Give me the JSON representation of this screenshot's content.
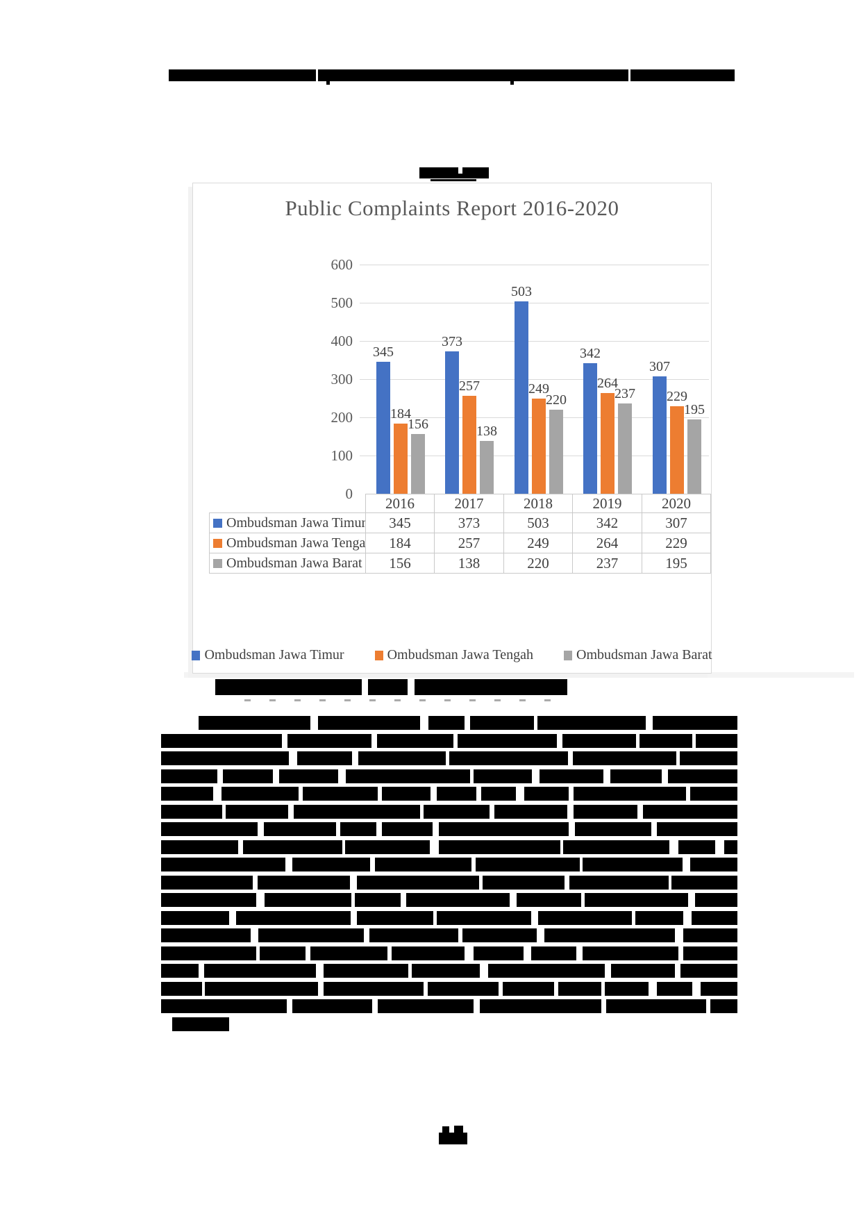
{
  "chart_data": {
    "type": "bar",
    "title": "Public Complaints Report 2016-2020",
    "categories": [
      "2016",
      "2017",
      "2018",
      "2019",
      "2020"
    ],
    "series": [
      {
        "name": "Ombudsman Jawa Timur",
        "color": "#4472C4",
        "values": [
          345,
          373,
          503,
          342,
          307
        ]
      },
      {
        "name": "Ombudsman Jawa Tengah",
        "color": "#ED7D31",
        "values": [
          184,
          257,
          249,
          264,
          229
        ]
      },
      {
        "name": "Ombudsman Jawa Barat",
        "color": "#A5A5A5",
        "values": [
          156,
          138,
          220,
          237,
          195
        ]
      }
    ],
    "xlabel": "",
    "ylabel": "",
    "ylim": [
      0,
      600
    ],
    "yticks": [
      0,
      100,
      200,
      300,
      400,
      500,
      600
    ],
    "grid": true,
    "data_labels": true,
    "data_table": true,
    "legend_position": "bottom"
  },
  "styles": {
    "grid_color": "#D9D9D9",
    "table_border_color": "#C9C9C9",
    "title_color": "#595959",
    "tick_color": "#595959",
    "value_color": "#404040",
    "redaction_color": "#000000",
    "shadow_color": "#F2F2F2"
  }
}
